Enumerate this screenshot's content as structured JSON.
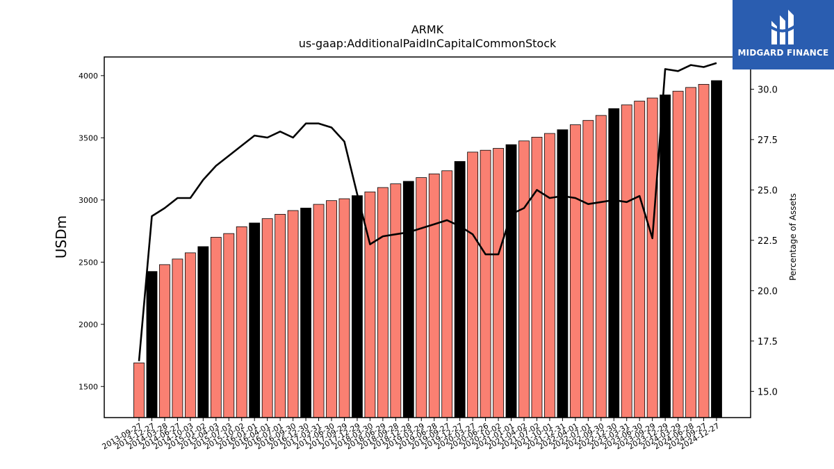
{
  "brand": {
    "name": "MIDGARD FINANCE",
    "bg_color": "#2a5db0"
  },
  "chart_data": {
    "type": "bar",
    "title": "ARMK",
    "subtitle": "us-gaap:AdditionalPaidInCapitalCommonStock",
    "ylabel": "USDm",
    "y2label": "Percentage of Assets",
    "ylim": [
      1250,
      4150
    ],
    "y2lim": [
      13.7,
      31.6
    ],
    "yticks": [
      1500,
      2000,
      2500,
      3000,
      3500,
      4000
    ],
    "y2ticks": [
      "15.0",
      "17.5",
      "20.0",
      "22.5",
      "25.0",
      "27.5",
      "30.0"
    ],
    "bar_color": "#fa8072",
    "highlight_color": "#000000",
    "line_color": "#000000",
    "categories": [
      "2013-09-27",
      "2013-12-27",
      "2014-03-28",
      "2014-06-27",
      "2014-10-03",
      "2015-01-02",
      "2015-04-03",
      "2015-07-03",
      "2015-10-02",
      "2016-01-01",
      "2016-04-01",
      "2016-07-01",
      "2016-09-30",
      "2016-12-30",
      "2017-03-31",
      "2017-06-30",
      "2017-09-29",
      "2017-12-29",
      "2018-03-30",
      "2018-06-29",
      "2018-09-28",
      "2018-12-28",
      "2019-03-29",
      "2019-06-28",
      "2019-09-27",
      "2019-12-27",
      "2020-03-27",
      "2020-06-26",
      "2020-10-02",
      "2021-01-01",
      "2021-04-02",
      "2021-07-02",
      "2021-10-01",
      "2021-12-31",
      "2022-04-01",
      "2022-07-01",
      "2022-09-30",
      "2022-12-30",
      "2023-03-31",
      "2023-06-30",
      "2023-09-29",
      "2023-12-29",
      "2024-03-29",
      "2024-06-28",
      "2024-09-27",
      "2024-12-27"
    ],
    "values": [
      1690,
      2425,
      2480,
      2525,
      2575,
      2625,
      2700,
      2730,
      2785,
      2815,
      2850,
      2885,
      2915,
      2935,
      2965,
      2995,
      3010,
      3035,
      3065,
      3100,
      3130,
      3150,
      3180,
      3210,
      3235,
      3310,
      3385,
      3400,
      3415,
      3445,
      3475,
      3505,
      3535,
      3565,
      3605,
      3640,
      3680,
      3735,
      3765,
      3795,
      3820,
      3845,
      3875,
      3905,
      3930,
      3960
    ],
    "highlight": [
      false,
      true,
      false,
      false,
      false,
      true,
      false,
      false,
      false,
      true,
      false,
      false,
      false,
      true,
      false,
      false,
      false,
      true,
      false,
      false,
      false,
      true,
      false,
      false,
      false,
      true,
      false,
      false,
      false,
      true,
      false,
      false,
      false,
      true,
      false,
      false,
      false,
      true,
      false,
      false,
      false,
      true,
      false,
      false,
      false,
      true
    ],
    "pct_of_assets": [
      16.5,
      23.7,
      24.1,
      24.6,
      24.6,
      25.5,
      26.2,
      26.7,
      27.2,
      27.7,
      27.6,
      27.9,
      27.6,
      28.3,
      28.3,
      28.1,
      27.4,
      24.8,
      22.3,
      22.7,
      22.8,
      22.9,
      23.1,
      23.3,
      23.5,
      23.2,
      22.8,
      21.8,
      21.8,
      23.8,
      24.1,
      25.0,
      24.6,
      24.7,
      24.6,
      24.3,
      24.4,
      24.5,
      24.4,
      24.7,
      22.6,
      31.0,
      30.9,
      31.2,
      31.1,
      31.3
    ]
  }
}
